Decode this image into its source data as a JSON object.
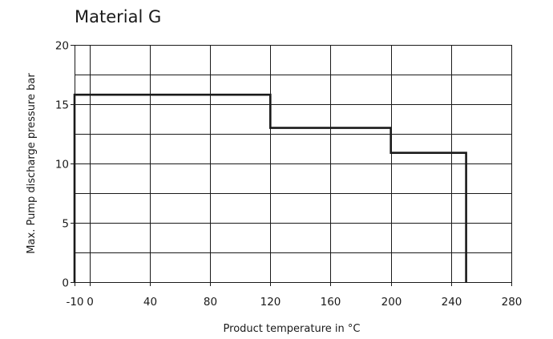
{
  "chart_data": {
    "type": "line",
    "title": "Material G",
    "xlabel": "Product temperature in °C",
    "ylabel": "Max. Pump discharge pressure bar",
    "x_ticks": [
      -10,
      0,
      40,
      80,
      120,
      160,
      200,
      240,
      280
    ],
    "y_ticks": [
      0,
      5,
      10,
      15,
      20
    ],
    "xlim": [
      -10,
      280
    ],
    "ylim": [
      0,
      20
    ],
    "grid": true,
    "line_color": "#1a1a1a",
    "series": [
      {
        "step": true,
        "points": [
          {
            "x": -10,
            "y": 0
          },
          {
            "x": -10,
            "y": 15.8
          },
          {
            "x": 120,
            "y": 15.8
          },
          {
            "x": 120,
            "y": 13
          },
          {
            "x": 200,
            "y": 13
          },
          {
            "x": 200,
            "y": 10.9
          },
          {
            "x": 250,
            "y": 10.9
          },
          {
            "x": 250,
            "y": 0
          }
        ]
      }
    ]
  }
}
